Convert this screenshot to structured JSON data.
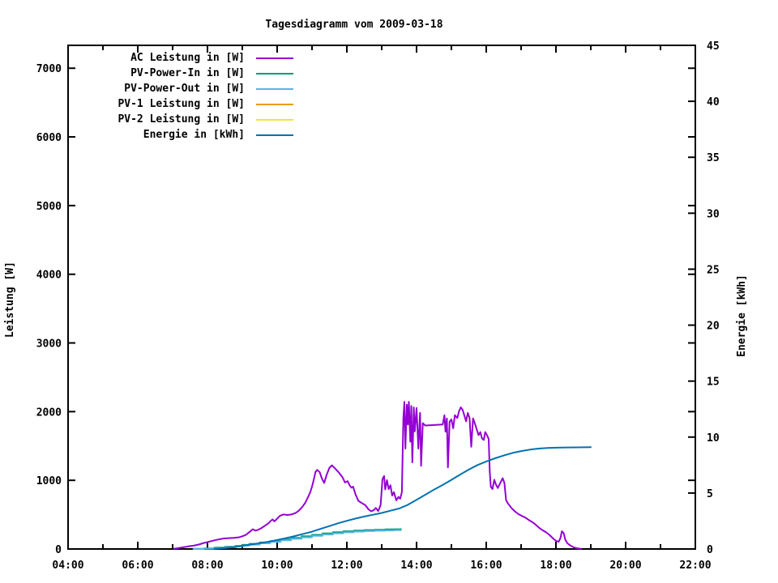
{
  "chart_data": {
    "type": "line",
    "title": "Tagesdiagramm vom 2009-03-18",
    "background": "#ffffff",
    "border_color": "#000000",
    "x_axis": {
      "range": [
        4,
        22
      ],
      "tick_values": [
        4,
        6,
        8,
        10,
        12,
        14,
        16,
        18,
        20,
        22
      ],
      "tick_labels": [
        "04:00",
        "06:00",
        "08:00",
        "10:00",
        "12:00",
        "14:00",
        "16:00",
        "18:00",
        "20:00",
        "22:00"
      ],
      "minor_tick_values": [
        5,
        7,
        9,
        11,
        13,
        15,
        17,
        19,
        21
      ]
    },
    "y_left": {
      "label": "Leistung [W]",
      "range": [
        0,
        7333
      ],
      "tick_values": [
        0,
        1000,
        2000,
        3000,
        4000,
        5000,
        6000,
        7000
      ],
      "tick_labels": [
        "0",
        "1000",
        "2000",
        "3000",
        "4000",
        "5000",
        "6000",
        "7000"
      ]
    },
    "y_right": {
      "label": "Energie [kWh]",
      "range": [
        0,
        45
      ],
      "tick_values": [
        0,
        5,
        10,
        15,
        20,
        25,
        30,
        35,
        40,
        45
      ],
      "tick_labels": [
        "0",
        "5",
        "10",
        "15",
        "20",
        "25",
        "30",
        "35",
        "40",
        "45"
      ]
    },
    "legend": {
      "position": "top-left",
      "entries": [
        {
          "id": "ac",
          "label": "AC Leistung in [W]",
          "color": "#9400d3"
        },
        {
          "id": "pv_in",
          "label": "PV-Power-In in [W]",
          "color": "#009e73"
        },
        {
          "id": "pv_out",
          "label": "PV-Power-Out in [W]",
          "color": "#56b4e9"
        },
        {
          "id": "pv1",
          "label": "PV-1 Leistung in [W]",
          "color": "#e69f00"
        },
        {
          "id": "pv2",
          "label": "PV-2 Leistung in [W]",
          "color": "#f0e442"
        },
        {
          "id": "energie",
          "label": "Energie in [kWh]",
          "color": "#0072b2"
        }
      ]
    },
    "series": [
      {
        "id": "ac",
        "name": "AC Leistung in [W]",
        "color": "#9400d3",
        "axis": "left",
        "style": "line",
        "points": [
          [
            7.05,
            5
          ],
          [
            7.15,
            12
          ],
          [
            7.3,
            25
          ],
          [
            7.45,
            38
          ],
          [
            7.6,
            48
          ],
          [
            7.75,
            65
          ],
          [
            7.9,
            88
          ],
          [
            8.0,
            100
          ],
          [
            8.15,
            120
          ],
          [
            8.3,
            138
          ],
          [
            8.45,
            152
          ],
          [
            8.6,
            158
          ],
          [
            8.75,
            162
          ],
          [
            8.9,
            170
          ],
          [
            9.0,
            185
          ],
          [
            9.1,
            205
          ],
          [
            9.2,
            245
          ],
          [
            9.3,
            288
          ],
          [
            9.38,
            268
          ],
          [
            9.45,
            278
          ],
          [
            9.55,
            305
          ],
          [
            9.65,
            340
          ],
          [
            9.75,
            375
          ],
          [
            9.82,
            412
          ],
          [
            9.87,
            432
          ],
          [
            9.92,
            402
          ],
          [
            10.0,
            442
          ],
          [
            10.08,
            482
          ],
          [
            10.17,
            502
          ],
          [
            10.3,
            495
          ],
          [
            10.42,
            505
          ],
          [
            10.53,
            525
          ],
          [
            10.62,
            558
          ],
          [
            10.72,
            612
          ],
          [
            10.8,
            668
          ],
          [
            10.88,
            748
          ],
          [
            10.95,
            825
          ],
          [
            11.0,
            908
          ],
          [
            11.05,
            1012
          ],
          [
            11.1,
            1122
          ],
          [
            11.15,
            1152
          ],
          [
            11.22,
            1118
          ],
          [
            11.28,
            1032
          ],
          [
            11.35,
            962
          ],
          [
            11.42,
            1082
          ],
          [
            11.5,
            1182
          ],
          [
            11.57,
            1218
          ],
          [
            11.63,
            1188
          ],
          [
            11.7,
            1152
          ],
          [
            11.78,
            1108
          ],
          [
            11.87,
            1048
          ],
          [
            11.95,
            968
          ],
          [
            12.02,
            988
          ],
          [
            12.08,
            928
          ],
          [
            12.13,
            892
          ],
          [
            12.18,
            908
          ],
          [
            12.25,
            792
          ],
          [
            12.33,
            702
          ],
          [
            12.43,
            668
          ],
          [
            12.53,
            638
          ],
          [
            12.62,
            578
          ],
          [
            12.7,
            548
          ],
          [
            12.78,
            568
          ],
          [
            12.83,
            598
          ],
          [
            12.9,
            552
          ],
          [
            12.97,
            642
          ],
          [
            13.02,
            1018
          ],
          [
            13.07,
            1062
          ],
          [
            13.1,
            868
          ],
          [
            13.15,
            1002
          ],
          [
            13.2,
            872
          ],
          [
            13.25,
            928
          ],
          [
            13.3,
            778
          ],
          [
            13.35,
            828
          ],
          [
            13.42,
            708
          ],
          [
            13.48,
            758
          ],
          [
            13.53,
            732
          ],
          [
            13.58,
            828
          ],
          [
            13.62,
            1902
          ],
          [
            13.65,
            2142
          ],
          [
            13.68,
            1462
          ],
          [
            13.72,
            2102
          ],
          [
            13.75,
            1812
          ],
          [
            13.78,
            2142
          ],
          [
            13.82,
            1562
          ],
          [
            13.85,
            2082
          ],
          [
            13.88,
            1262
          ],
          [
            13.92,
            2062
          ],
          [
            13.95,
            1712
          ],
          [
            14.0,
            2052
          ],
          [
            14.05,
            1462
          ],
          [
            14.1,
            1982
          ],
          [
            14.13,
            1212
          ],
          [
            14.18,
            1832
          ],
          [
            14.25,
            1798
          ],
          [
            14.75,
            1812
          ],
          [
            14.8,
            1948
          ],
          [
            14.83,
            1708
          ],
          [
            14.87,
            1902
          ],
          [
            14.9,
            1188
          ],
          [
            14.95,
            1852
          ],
          [
            15.0,
            1888
          ],
          [
            15.05,
            1758
          ],
          [
            15.1,
            1948
          ],
          [
            15.17,
            1908
          ],
          [
            15.22,
            2008
          ],
          [
            15.27,
            2062
          ],
          [
            15.32,
            2028
          ],
          [
            15.37,
            1948
          ],
          [
            15.42,
            1858
          ],
          [
            15.47,
            1982
          ],
          [
            15.52,
            1908
          ],
          [
            15.57,
            1488
          ],
          [
            15.62,
            1902
          ],
          [
            15.67,
            1832
          ],
          [
            15.72,
            1752
          ],
          [
            15.78,
            1658
          ],
          [
            15.83,
            1702
          ],
          [
            15.88,
            1608
          ],
          [
            15.93,
            1588
          ],
          [
            15.97,
            1702
          ],
          [
            16.02,
            1658
          ],
          [
            16.07,
            1602
          ],
          [
            16.1,
            1132
          ],
          [
            16.13,
            908
          ],
          [
            16.18,
            872
          ],
          [
            16.23,
            1008
          ],
          [
            16.28,
            938
          ],
          [
            16.33,
            888
          ],
          [
            16.4,
            958
          ],
          [
            16.47,
            1032
          ],
          [
            16.52,
            962
          ],
          [
            16.57,
            708
          ],
          [
            16.63,
            658
          ],
          [
            16.72,
            598
          ],
          [
            16.82,
            548
          ],
          [
            16.92,
            508
          ],
          [
            17.02,
            482
          ],
          [
            17.12,
            458
          ],
          [
            17.22,
            422
          ],
          [
            17.32,
            392
          ],
          [
            17.42,
            352
          ],
          [
            17.52,
            308
          ],
          [
            17.62,
            272
          ],
          [
            17.72,
            242
          ],
          [
            17.82,
            202
          ],
          [
            17.92,
            152
          ],
          [
            18.0,
            118
          ],
          [
            18.08,
            105
          ],
          [
            18.13,
            162
          ],
          [
            18.17,
            258
          ],
          [
            18.22,
            232
          ],
          [
            18.27,
            132
          ],
          [
            18.33,
            82
          ],
          [
            18.42,
            48
          ],
          [
            18.52,
            22
          ],
          [
            18.62,
            8
          ],
          [
            18.72,
            2
          ]
        ]
      },
      {
        "id": "pv_in",
        "name": "PV-Power-In in [W]",
        "color": "#009e73",
        "axis": "left",
        "style": "steps",
        "points": [
          [
            7.6,
            4
          ],
          [
            7.9,
            10
          ],
          [
            8.2,
            20
          ],
          [
            8.5,
            32
          ],
          [
            8.8,
            46
          ],
          [
            9.0,
            60
          ],
          [
            9.2,
            75
          ],
          [
            9.5,
            95
          ],
          [
            9.8,
            116
          ],
          [
            10.1,
            140
          ],
          [
            10.4,
            162
          ],
          [
            10.7,
            185
          ],
          [
            11.0,
            206
          ],
          [
            11.3,
            226
          ],
          [
            11.6,
            244
          ],
          [
            11.9,
            258
          ],
          [
            12.2,
            268
          ],
          [
            12.5,
            276
          ],
          [
            12.8,
            281
          ],
          [
            13.1,
            285
          ],
          [
            13.35,
            288
          ],
          [
            13.55,
            290
          ]
        ]
      },
      {
        "id": "pv_out",
        "name": "PV-Power-Out in [W]",
        "color": "#56b4e9",
        "axis": "left",
        "style": "steps",
        "points": [
          [
            7.6,
            0
          ],
          [
            7.9,
            5
          ],
          [
            8.2,
            13
          ],
          [
            8.5,
            24
          ],
          [
            8.8,
            37
          ],
          [
            9.0,
            50
          ],
          [
            9.2,
            64
          ],
          [
            9.5,
            83
          ],
          [
            9.8,
            103
          ],
          [
            10.1,
            126
          ],
          [
            10.4,
            148
          ],
          [
            10.7,
            170
          ],
          [
            11.0,
            191
          ],
          [
            11.3,
            211
          ],
          [
            11.6,
            229
          ],
          [
            11.9,
            243
          ],
          [
            12.2,
            253
          ],
          [
            12.5,
            261
          ],
          [
            12.8,
            266
          ],
          [
            13.1,
            270
          ],
          [
            13.35,
            273
          ],
          [
            13.55,
            275
          ]
        ]
      },
      {
        "id": "pv1",
        "name": "PV-1 Leistung in [W]",
        "color": "#e69f00",
        "axis": "left",
        "style": "line",
        "points": []
      },
      {
        "id": "pv2",
        "name": "PV-2 Leistung in [W]",
        "color": "#f0e442",
        "axis": "left",
        "style": "line",
        "points": []
      },
      {
        "id": "energie",
        "name": "Energie in [kWh]",
        "color": "#0072b2",
        "axis": "right",
        "style": "line",
        "points": [
          [
            8.2,
            0.02
          ],
          [
            8.5,
            0.08
          ],
          [
            8.8,
            0.18
          ],
          [
            9.0,
            0.28
          ],
          [
            9.25,
            0.4
          ],
          [
            9.5,
            0.52
          ],
          [
            9.75,
            0.65
          ],
          [
            10.0,
            0.8
          ],
          [
            10.25,
            0.97
          ],
          [
            10.5,
            1.15
          ],
          [
            10.75,
            1.35
          ],
          [
            11.0,
            1.55
          ],
          [
            11.25,
            1.8
          ],
          [
            11.5,
            2.05
          ],
          [
            11.75,
            2.3
          ],
          [
            12.0,
            2.52
          ],
          [
            12.25,
            2.72
          ],
          [
            12.5,
            2.9
          ],
          [
            12.75,
            3.06
          ],
          [
            13.0,
            3.22
          ],
          [
            13.25,
            3.42
          ],
          [
            13.5,
            3.62
          ],
          [
            13.75,
            3.95
          ],
          [
            14.0,
            4.4
          ],
          [
            14.25,
            4.85
          ],
          [
            14.5,
            5.3
          ],
          [
            14.75,
            5.72
          ],
          [
            15.0,
            6.18
          ],
          [
            15.25,
            6.65
          ],
          [
            15.5,
            7.1
          ],
          [
            15.75,
            7.5
          ],
          [
            16.0,
            7.82
          ],
          [
            16.25,
            8.1
          ],
          [
            16.5,
            8.35
          ],
          [
            16.75,
            8.58
          ],
          [
            17.0,
            8.75
          ],
          [
            17.25,
            8.88
          ],
          [
            17.5,
            8.97
          ],
          [
            17.75,
            9.02
          ],
          [
            18.0,
            9.05
          ],
          [
            18.3,
            9.07
          ],
          [
            18.6,
            9.08
          ],
          [
            19.0,
            9.1
          ]
        ]
      }
    ]
  }
}
